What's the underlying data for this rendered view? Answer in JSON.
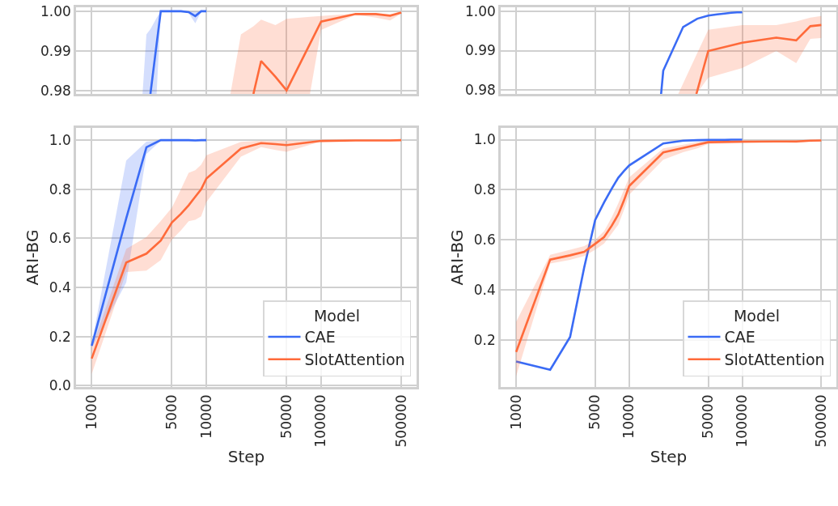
{
  "chart_data": [
    {
      "type": "line",
      "log": "x",
      "grid": true,
      "legend": false,
      "tick_labels": "y",
      "xlim": [
        730,
        680000
      ],
      "xticks": [
        1000,
        5000,
        10000,
        50000,
        100000,
        500000
      ],
      "ylim": [
        0.9792,
        1.001
      ],
      "yticks": [
        {
          "value": 1.0,
          "label": "1.00"
        },
        {
          "value": 0.99,
          "label": "0.99"
        },
        {
          "value": 0.98,
          "label": "0.98"
        }
      ],
      "series": [
        {
          "color": "#3a6bf5",
          "x": [
            2775,
            3000,
            3250,
            3680,
            4000,
            5000,
            6000,
            7000,
            8000,
            9000,
            10000
          ],
          "values": [
            null,
            null,
            0.9792,
            0.9917,
            1.0,
            1.0,
            1.0,
            0.9998,
            0.9988,
            1.0,
            1.0
          ],
          "upper": [
            0.9792,
            0.9942,
            0.9955,
            0.9983,
            1.0,
            1.0,
            1.0,
            1.0,
            0.9999,
            1.0,
            1.0
          ],
          "lower": [
            0.9792,
            0.9792,
            0.9792,
            0.9792,
            0.9998,
            1.0,
            1.0,
            0.9995,
            0.997,
            0.9999,
            1.0
          ]
        },
        {
          "color": "#ff6a3a",
          "x": [
            16200,
            20000,
            25700,
            30000,
            40000,
            50000,
            80000,
            100000,
            200000,
            300000,
            400000,
            500000
          ],
          "values": [
            null,
            null,
            0.9792,
            0.9875,
            0.9835,
            0.9801,
            0.9918,
            0.9974,
            0.9993,
            0.9993,
            0.9989,
            0.9997
          ],
          "upper": [
            0.9792,
            0.9942,
            0.9962,
            0.9979,
            0.9965,
            0.9981,
            0.9986,
            0.9988,
            0.9994,
            0.9993,
            0.999,
            0.9997
          ],
          "lower": [
            0.9792,
            0.9792,
            0.9792,
            0.9792,
            0.9792,
            0.9792,
            0.9792,
            0.9953,
            0.9991,
            0.9984,
            0.9977,
            0.9994
          ]
        }
      ]
    },
    {
      "type": "line",
      "log": "x",
      "grid": true,
      "legend": false,
      "tick_labels": "y",
      "xlim": [
        730,
        680000
      ],
      "xticks": [
        1000,
        5000,
        10000,
        50000,
        100000,
        500000
      ],
      "ylim": [
        0.979,
        1.001
      ],
      "yticks": [
        {
          "value": 1.0,
          "label": "1.00"
        },
        {
          "value": 0.99,
          "label": "0.99"
        },
        {
          "value": 0.98,
          "label": "0.98"
        }
      ],
      "series": [
        {
          "color": "#3a6bf5",
          "x": [
            19150,
            20000,
            30000,
            40000,
            50000,
            60000,
            70000,
            80000,
            90000,
            100000
          ],
          "values": [
            0.979,
            0.9849,
            0.996,
            0.9981,
            0.9989,
            0.9992,
            0.9994,
            0.9996,
            0.9997,
            0.9997
          ]
        },
        {
          "color": "#ff6a3a",
          "x": [
            27160,
            39300,
            50000,
            100000,
            200000,
            300000,
            400000,
            500000
          ],
          "values": [
            null,
            0.979,
            0.9899,
            0.992,
            0.9933,
            0.9926,
            0.9962,
            0.9965
          ],
          "upper": [
            0.979,
            0.9889,
            0.9953,
            0.9965,
            0.9965,
            0.9974,
            0.9984,
            0.9988
          ],
          "lower": [
            0.979,
            0.979,
            0.9831,
            0.9856,
            0.9899,
            0.9868,
            0.993,
            0.9932
          ]
        }
      ]
    },
    {
      "type": "line",
      "log": "x",
      "grid": true,
      "legend": "bottom right",
      "legend_title": "Model",
      "xlabel": "Step",
      "ylabel": "ARI-BG",
      "xlim": [
        730,
        680000
      ],
      "xticks": [
        1000,
        5000,
        10000,
        50000,
        100000,
        500000
      ],
      "ylim": [
        -0.005,
        1.05
      ],
      "yticks": [
        {
          "value": 0,
          "label": "0.0"
        },
        {
          "value": 0.2,
          "label": "0.2"
        },
        {
          "value": 0.4,
          "label": "0.4"
        },
        {
          "value": 0.6,
          "label": "0.6"
        },
        {
          "value": 0.8,
          "label": "0.8"
        },
        {
          "value": 1.0,
          "label": "1.0"
        }
      ],
      "series": [
        {
          "name": "CAE",
          "color": "#3a6bf5",
          "x": [
            1000,
            2000,
            3000,
            4000,
            5000,
            6000,
            7000,
            8000,
            9000,
            10000
          ],
          "values": [
            0.163,
            0.682,
            0.971,
            1.0,
            1.0,
            1.0,
            1.0,
            0.999,
            1.0,
            1.0
          ],
          "upper": [
            0.17,
            0.917,
            0.994,
            1.0,
            1.0,
            1.0,
            1.0,
            1.0,
            1.0,
            1.0
          ],
          "lower": [
            0.155,
            0.42,
            0.944,
            0.998,
            1.0,
            1.0,
            0.999,
            0.997,
            1.0,
            1.0
          ]
        },
        {
          "name": "SlotAttention",
          "color": "#ff6a3a",
          "x": [
            1000,
            2000,
            3000,
            4000,
            5000,
            6000,
            7000,
            8000,
            9000,
            10000,
            20000,
            30000,
            40000,
            50000,
            100000,
            200000,
            300000,
            400000,
            500000
          ],
          "values": [
            0.111,
            0.502,
            0.538,
            0.591,
            0.665,
            0.7,
            0.735,
            0.77,
            0.8,
            0.844,
            0.966,
            0.988,
            0.984,
            0.98,
            0.997,
            0.999,
            0.999,
            0.999,
            1.0
          ],
          "upper": [
            0.152,
            0.557,
            0.606,
            0.671,
            0.725,
            0.8,
            0.867,
            0.878,
            0.9,
            0.939,
            0.993,
            0.998,
            0.997,
            0.998,
            0.999,
            1.0,
            1.0,
            1.0,
            1.0
          ],
          "lower": [
            0.048,
            0.463,
            0.469,
            0.512,
            0.595,
            0.633,
            0.67,
            0.676,
            0.69,
            0.748,
            0.933,
            0.972,
            0.96,
            0.953,
            0.995,
            0.999,
            0.998,
            0.998,
            0.999
          ]
        }
      ]
    },
    {
      "type": "line",
      "log": "x",
      "grid": true,
      "legend": "bottom right",
      "legend_title": "Model",
      "xlabel": "Step",
      "ylabel": "ARI-BG",
      "xlim": [
        730,
        680000
      ],
      "xticks": [
        1000,
        5000,
        10000,
        50000,
        100000,
        500000
      ],
      "ylim": [
        0.012,
        1.047
      ],
      "yticks": [
        {
          "value": 0.2,
          "label": "0.2"
        },
        {
          "value": 0.4,
          "label": "0.4"
        },
        {
          "value": 0.6,
          "label": "0.6"
        },
        {
          "value": 0.8,
          "label": "0.8"
        },
        {
          "value": 1.0,
          "label": "1.0"
        }
      ],
      "series": [
        {
          "name": "CAE",
          "color": "#3a6bf5",
          "x": [
            1000,
            2000,
            3000,
            4000,
            5000,
            6000,
            7000,
            8000,
            9000,
            10000,
            20000,
            30000,
            40000,
            50000,
            60000,
            70000,
            80000,
            90000,
            100000
          ],
          "values": [
            0.114,
            0.081,
            0.212,
            0.49,
            0.679,
            0.75,
            0.804,
            0.848,
            0.875,
            0.897,
            0.985,
            0.996,
            0.998,
            0.999,
            0.999,
            0.999,
            1.0,
            1.0,
            1.0
          ]
        },
        {
          "name": "SlotAttention",
          "color": "#ff6a3a",
          "x": [
            1000,
            2000,
            3000,
            4000,
            5000,
            6000,
            7000,
            8000,
            9000,
            10000,
            20000,
            30000,
            40000,
            50000,
            100000,
            200000,
            300000,
            400000,
            500000
          ],
          "values": [
            0.152,
            0.521,
            0.538,
            0.552,
            0.584,
            0.611,
            0.656,
            0.701,
            0.758,
            0.815,
            0.949,
            0.967,
            0.98,
            0.99,
            0.992,
            0.993,
            0.993,
            0.996,
            0.997
          ],
          "upper": [
            0.272,
            0.54,
            0.56,
            0.575,
            0.6,
            0.635,
            0.69,
            0.745,
            0.8,
            0.85,
            0.965,
            0.98,
            0.99,
            0.995,
            0.996,
            0.996,
            0.997,
            0.998,
            0.999
          ],
          "lower": [
            0.055,
            0.505,
            0.52,
            0.535,
            0.56,
            0.585,
            0.625,
            0.66,
            0.72,
            0.78,
            0.92,
            0.95,
            0.965,
            0.983,
            0.986,
            0.99,
            0.987,
            0.993,
            0.993
          ]
        }
      ]
    }
  ]
}
